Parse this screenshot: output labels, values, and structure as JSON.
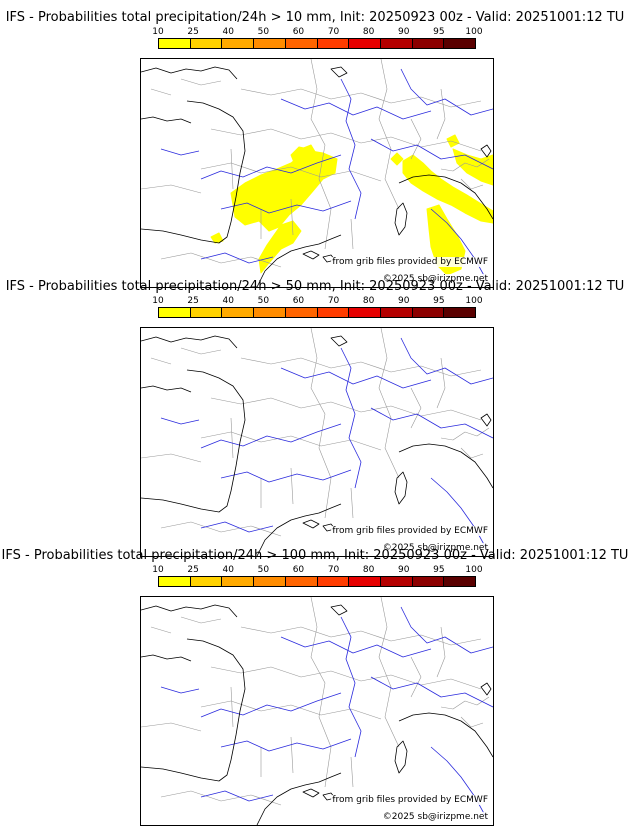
{
  "legend": {
    "ticks": [
      "10",
      "25",
      "40",
      "50",
      "60",
      "70",
      "80",
      "90",
      "95",
      "100"
    ],
    "colors": [
      "#ffff00",
      "#ffd200",
      "#ffaa00",
      "#ff8c00",
      "#ff6400",
      "#ff3c00",
      "#e60000",
      "#b40000",
      "#8c0000",
      "#5a0000"
    ]
  },
  "panels": [
    {
      "title": "IFS - Probabilities total precipitation/24h > 10 mm, Init: 20250923 00z - Valid: 20251001:12 TU",
      "source_credit": "from grib files provided by ECMWF",
      "copyright": "©2025 sb@irizpme.net",
      "precip_fill_color": "#ffff00"
    },
    {
      "title": "IFS - Probabilities total precipitation/24h > 50 mm, Init: 20250923 00z - Valid: 20251001:12 TU",
      "source_credit": "from grib files provided by ECMWF",
      "copyright": "©2025 sb@irizpme.net"
    },
    {
      "title": "IFS - Probabilities total precipitation/24h > 100 mm, Init: 20250923 00z - Valid: 20251001:12 TU",
      "source_credit": "from grib files provided by ECMWF",
      "copyright": "©2025 sb@irizpme.net"
    }
  ],
  "map_colors": {
    "coast": "#000000",
    "borders": "#999999",
    "rivers": "#2b2bdd"
  }
}
